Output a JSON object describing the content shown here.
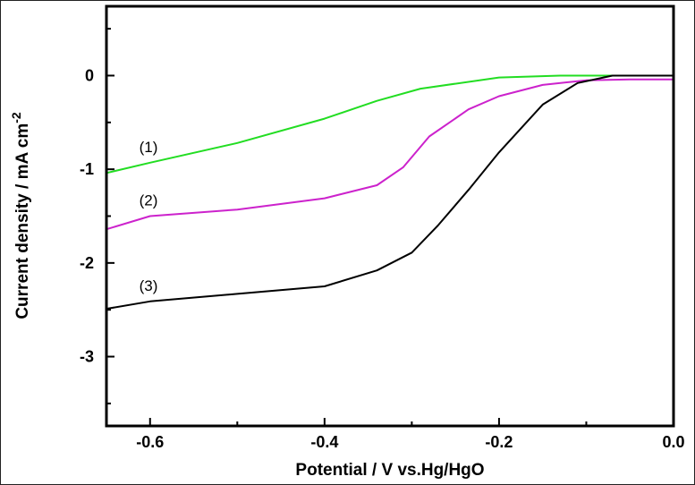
{
  "chart_data": {
    "type": "line",
    "title": "",
    "xlabel": "Potential / V vs.Hg/HgO",
    "ylabel": "Current density / mA cm",
    "ylabel_superscript": "-2",
    "xlim": [
      -0.65,
      0.0
    ],
    "ylim": [
      -3.74,
      0.74
    ],
    "xticks": [
      -0.6,
      -0.4,
      -0.2,
      0.0
    ],
    "xtick_labels": [
      "-0.6",
      "-0.4",
      "-0.2",
      "0.0"
    ],
    "yticks": [
      0,
      -1,
      -2,
      -3
    ],
    "ytick_labels": [
      "0",
      "-1",
      "-2",
      "-3"
    ],
    "grid": false,
    "legend": "none",
    "series": [
      {
        "label": "(1)",
        "color": "#22dd22",
        "x": [
          -0.65,
          -0.6,
          -0.5,
          -0.4,
          -0.34,
          -0.29,
          -0.2,
          -0.13,
          0.0
        ],
        "y": [
          -1.04,
          -0.93,
          -0.72,
          -0.46,
          -0.27,
          -0.14,
          -0.02,
          0.0,
          0.0
        ]
      },
      {
        "label": "(2)",
        "color": "#cc22cc",
        "x": [
          -0.65,
          -0.6,
          -0.5,
          -0.4,
          -0.34,
          -0.31,
          -0.28,
          -0.235,
          -0.2,
          -0.15,
          -0.1,
          -0.05,
          0.0
        ],
        "y": [
          -1.64,
          -1.5,
          -1.43,
          -1.31,
          -1.17,
          -0.98,
          -0.65,
          -0.36,
          -0.22,
          -0.1,
          -0.05,
          -0.04,
          -0.04
        ]
      },
      {
        "label": "(3)",
        "color": "#000000",
        "x": [
          -0.65,
          -0.6,
          -0.5,
          -0.4,
          -0.34,
          -0.3,
          -0.27,
          -0.235,
          -0.2,
          -0.15,
          -0.11,
          -0.07,
          0.0
        ],
        "y": [
          -2.49,
          -2.41,
          -2.33,
          -2.25,
          -2.08,
          -1.89,
          -1.6,
          -1.22,
          -0.82,
          -0.31,
          -0.08,
          0.0,
          0.0
        ]
      }
    ]
  }
}
